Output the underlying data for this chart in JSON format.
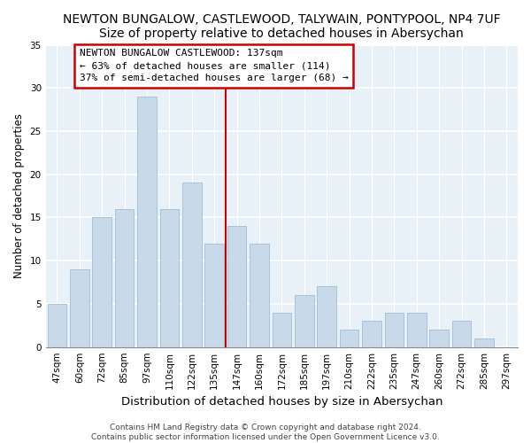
{
  "title": "NEWTON BUNGALOW, CASTLEWOOD, TALYWAIN, PONTYPOOL, NP4 7UF",
  "subtitle": "Size of property relative to detached houses in Abersychan",
  "xlabel": "Distribution of detached houses by size in Abersychan",
  "ylabel": "Number of detached properties",
  "bar_labels": [
    "47sqm",
    "60sqm",
    "72sqm",
    "85sqm",
    "97sqm",
    "110sqm",
    "122sqm",
    "135sqm",
    "147sqm",
    "160sqm",
    "172sqm",
    "185sqm",
    "197sqm",
    "210sqm",
    "222sqm",
    "235sqm",
    "247sqm",
    "260sqm",
    "272sqm",
    "285sqm",
    "297sqm"
  ],
  "bar_values": [
    5,
    9,
    15,
    16,
    29,
    16,
    19,
    12,
    14,
    12,
    4,
    6,
    7,
    2,
    3,
    4,
    4,
    2,
    3,
    1,
    0
  ],
  "bar_color": "#c8daea",
  "bar_edge_color": "#a8c4d8",
  "vline_color": "#cc0000",
  "annotation_title": "NEWTON BUNGALOW CASTLEWOOD: 137sqm",
  "annotation_line1": "← 63% of detached houses are smaller (114)",
  "annotation_line2": "37% of semi-detached houses are larger (68) →",
  "annotation_box_color": "#ffffff",
  "annotation_box_edge": "#cc0000",
  "ylim": [
    0,
    35
  ],
  "yticks": [
    0,
    5,
    10,
    15,
    20,
    25,
    30,
    35
  ],
  "footer1": "Contains HM Land Registry data © Crown copyright and database right 2024.",
  "footer2": "Contains public sector information licensed under the Open Government Licence v3.0.",
  "bg_color": "#ffffff",
  "plot_bg_color": "#e8f0f8",
  "title_fontsize": 10,
  "subtitle_fontsize": 9.5,
  "xlabel_fontsize": 9.5,
  "ylabel_fontsize": 8.5,
  "tick_fontsize": 7.5,
  "footer_fontsize": 6.5,
  "annotation_fontsize": 8
}
